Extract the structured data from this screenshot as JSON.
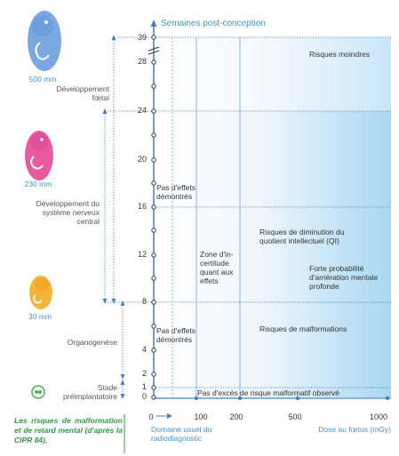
{
  "chart_data": {
    "type": "diagram",
    "y_title": "Semaines post-conception",
    "y_ticks": [
      "39",
      "28",
      "24",
      "20",
      "16",
      "12",
      "8",
      "4",
      "2",
      "1",
      "0"
    ],
    "x_ticks": [
      "0",
      "100",
      "200",
      "500",
      "1000"
    ],
    "x_label_left": "Domaine usuel du radiodiagnostic",
    "x_label_right": "Dose au fœtus (mGy)",
    "stages": [
      {
        "label": "Développement fœtal",
        "weeks": [
          8,
          39
        ]
      },
      {
        "label": "Développement du système nerveux central",
        "weeks": [
          8,
          24
        ]
      },
      {
        "label": "Organogenèse",
        "weeks": [
          2,
          8
        ]
      },
      {
        "label": "Stade préimplantatoire",
        "weeks": [
          0,
          2
        ]
      }
    ],
    "fetus_sizes": [
      "500 mm",
      "230 mm",
      "30 mm"
    ],
    "zones": {
      "pas_effets_1": "Pas d'effets démontrés",
      "pas_effets_2": "Pas d'effets démontrés",
      "incertitude": "Zone d'in-certitude quant aux effets",
      "risques_moindres": "Risques moindres",
      "risques_qi": "Risques de diminution du quotient intellectuel (QI)",
      "arrieration": "Forte probabilité d'arriération mentale profonde",
      "malformations": "Risques de malformations",
      "pas_exces": "Pas d'excès de risque malformatif observé"
    }
  },
  "caption": "Les risques de malformation et de retard mental (d'après la CIPR 84)."
}
